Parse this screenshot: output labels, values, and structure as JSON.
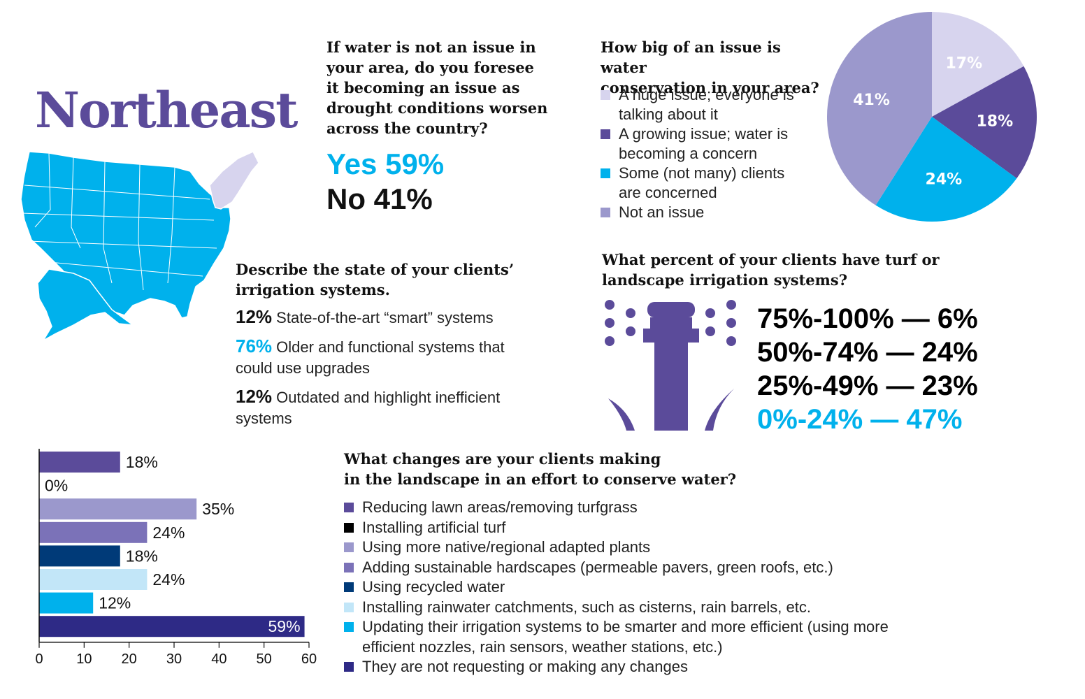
{
  "region": {
    "title": "Northeast"
  },
  "colors": {
    "purple": "#5b4b9a",
    "light_lavender": "#d7d4ee",
    "lavender": "#9b98cc",
    "cyan": "#00b1ec",
    "mid_purple": "#7b72b8",
    "navy": "#003a78",
    "pale_blue": "#c2e6f8",
    "dark_blue": "#2e2a86",
    "black": "#000000"
  },
  "q_future": {
    "question": [
      "If water is not an issue in",
      "your area, do you foresee",
      "it becoming an issue as",
      "drought conditions worsen",
      "across the country?"
    ],
    "yes": "Yes 59%",
    "no": "No 41%"
  },
  "q_issue": {
    "question": [
      "How big of an issue is water",
      "conservation in your area?"
    ],
    "legend": [
      {
        "lines": [
          "A huge issue; everyone is",
          "talking about it"
        ],
        "color": "#d7d4ee"
      },
      {
        "lines": [
          "A growing issue; water is",
          "becoming a concern"
        ],
        "color": "#5b4b9a"
      },
      {
        "lines": [
          "Some (not many) clients",
          "are concerned"
        ],
        "color": "#00b1ec"
      },
      {
        "lines": [
          "Not an issue"
        ],
        "color": "#9b98cc"
      }
    ]
  },
  "q_irrigation": {
    "question": [
      "Describe the state of your clients’",
      "irrigation systems."
    ],
    "items": [
      {
        "pct": "12%",
        "text": "State-of-the-art “smart” systems",
        "text2": "",
        "highlight": false
      },
      {
        "pct": "76%",
        "text": "Older and functional systems that",
        "text2": "could use upgrades",
        "highlight": true
      },
      {
        "pct": "12%",
        "text": "Outdated and highlight inefficient",
        "text2": "systems",
        "highlight": false
      }
    ]
  },
  "q_turf": {
    "question": [
      "What percent of your clients have turf or",
      "landscape irrigation systems?"
    ],
    "rows": [
      {
        "text": "75%-100% — 6%",
        "highlight": false
      },
      {
        "text": "50%-74% — 24%",
        "highlight": false
      },
      {
        "text": "25%-49% — 23%",
        "highlight": false
      },
      {
        "text": "0%-24% — 47%",
        "highlight": true
      }
    ]
  },
  "q_changes": {
    "question": [
      "What changes are your clients making",
      "in the landscape in an effort to conserve water?"
    ],
    "legend": [
      {
        "lines": [
          "Reducing lawn areas/removing turfgrass"
        ],
        "color": "#5b4b9a"
      },
      {
        "lines": [
          "Installing artificial turf"
        ],
        "color": "#000000"
      },
      {
        "lines": [
          "Using more native/regional adapted plants"
        ],
        "color": "#9b98cc"
      },
      {
        "lines": [
          "Adding sustainable hardscapes (permeable pavers, green roofs, etc.)"
        ],
        "color": "#7b72b8"
      },
      {
        "lines": [
          "Using recycled water"
        ],
        "color": "#003a78"
      },
      {
        "lines": [
          "Installing rainwater catchments, such as cisterns, rain barrels, etc."
        ],
        "color": "#c2e6f8"
      },
      {
        "lines": [
          "Updating their irrigation systems to be smarter and more efficient (using more",
          "efficient nozzles, rain sensors, weather stations, etc.)"
        ],
        "color": "#00b1ec"
      },
      {
        "lines": [
          "They are not requesting or making any changes"
        ],
        "color": "#2e2a86"
      }
    ]
  },
  "chart_data": [
    {
      "type": "pie",
      "title": "How big of an issue is water conservation in your area?",
      "slices": [
        {
          "label": "A huge issue; everyone is talking about it",
          "value": 17,
          "display": "17%",
          "color": "#d7d4ee"
        },
        {
          "label": "A growing issue; water is becoming a concern",
          "value": 18,
          "display": "18%",
          "color": "#5b4b9a"
        },
        {
          "label": "Some (not many) clients are concerned",
          "value": 24,
          "display": "24%",
          "color": "#00b1ec"
        },
        {
          "label": "Not an issue",
          "value": 41,
          "display": "41%",
          "color": "#9b98cc"
        }
      ]
    },
    {
      "type": "bar",
      "orientation": "horizontal",
      "title": "What changes are your clients making in the landscape in an effort to conserve water?",
      "categories": [
        "Reducing lawn areas/removing turfgrass",
        "Installing artificial turf",
        "Using more native/regional adapted plants",
        "Adding sustainable hardscapes (permeable pavers, green roofs, etc.)",
        "Using recycled water",
        "Installing rainwater catchments, such as cisterns, rain barrels, etc.",
        "Updating their irrigation systems to be smarter and more efficient (using more efficient nozzles, rain sensors, weather stations, etc.)",
        "They are not requesting or making any changes"
      ],
      "values": [
        18,
        0,
        35,
        24,
        18,
        24,
        12,
        59
      ],
      "labels": [
        "18%",
        "0%",
        "35%",
        "24%",
        "18%",
        "24%",
        "12%",
        "59%"
      ],
      "colors": [
        "#5b4b9a",
        "#000000",
        "#9b98cc",
        "#7b72b8",
        "#003a78",
        "#c2e6f8",
        "#00b1ec",
        "#2e2a86"
      ],
      "xlim": [
        0,
        60
      ],
      "xticks": [
        0,
        10,
        20,
        30,
        40,
        50,
        60
      ]
    }
  ]
}
